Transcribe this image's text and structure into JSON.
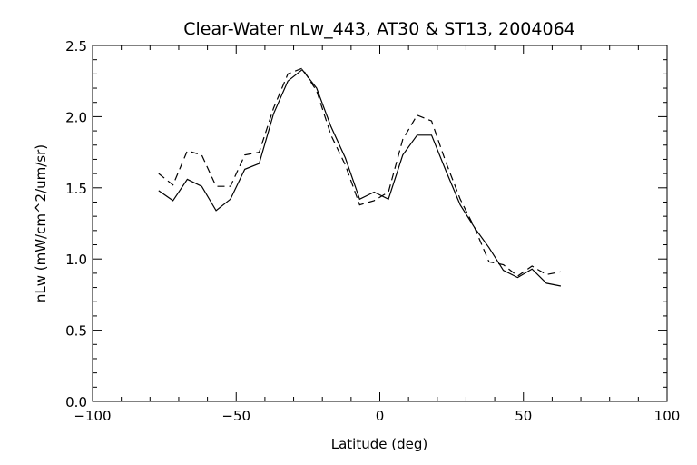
{
  "chart_data": {
    "type": "line",
    "title": "Clear-Water nLw_443, AT30 & ST13, 2004064",
    "xlabel": "Latitude (deg)",
    "ylabel": "nLw (mW/cm^2/um/sr)",
    "xlim": [
      -100,
      100
    ],
    "ylim": [
      0.0,
      2.5
    ],
    "xticks": [
      -100,
      -50,
      0,
      50,
      100
    ],
    "xtick_labels": [
      "−100",
      "−50",
      "0",
      "50",
      "100"
    ],
    "yticks": [
      0.0,
      0.5,
      1.0,
      1.5,
      2.0,
      2.5
    ],
    "ytick_labels": [
      "0.0",
      "0.5",
      "1.0",
      "1.5",
      "2.0",
      "2.5"
    ],
    "grid": false,
    "series": [
      {
        "style": "solid",
        "color": "#000000",
        "x": [
          -77,
          -72,
          -67,
          -62,
          -57,
          -52,
          -47,
          -42,
          -37,
          -32,
          -27,
          -22,
          -17,
          -12,
          -7,
          -2,
          3,
          8,
          13,
          18,
          23,
          28,
          33,
          38,
          43,
          48,
          53,
          58,
          63
        ],
        "y": [
          1.48,
          1.41,
          1.56,
          1.51,
          1.34,
          1.42,
          1.63,
          1.67,
          2.02,
          2.25,
          2.33,
          2.2,
          1.93,
          1.71,
          1.42,
          1.47,
          1.42,
          1.73,
          1.87,
          1.87,
          1.62,
          1.38,
          1.22,
          1.08,
          0.92,
          0.87,
          0.93,
          0.83,
          0.81
        ]
      },
      {
        "style": "dashed",
        "color": "#000000",
        "x": [
          -77,
          -72,
          -67,
          -62,
          -57,
          -52,
          -47,
          -42,
          -37,
          -32,
          -27,
          -22,
          -17,
          -12,
          -7,
          -2,
          3,
          8,
          13,
          18,
          23,
          28,
          33,
          38,
          43,
          48,
          53,
          58,
          63
        ],
        "y": [
          1.6,
          1.52,
          1.76,
          1.73,
          1.51,
          1.51,
          1.73,
          1.75,
          2.06,
          2.3,
          2.34,
          2.18,
          1.87,
          1.66,
          1.38,
          1.41,
          1.47,
          1.84,
          2.01,
          1.97,
          1.68,
          1.42,
          1.22,
          0.98,
          0.96,
          0.88,
          0.95,
          0.89,
          0.91
        ]
      }
    ]
  }
}
